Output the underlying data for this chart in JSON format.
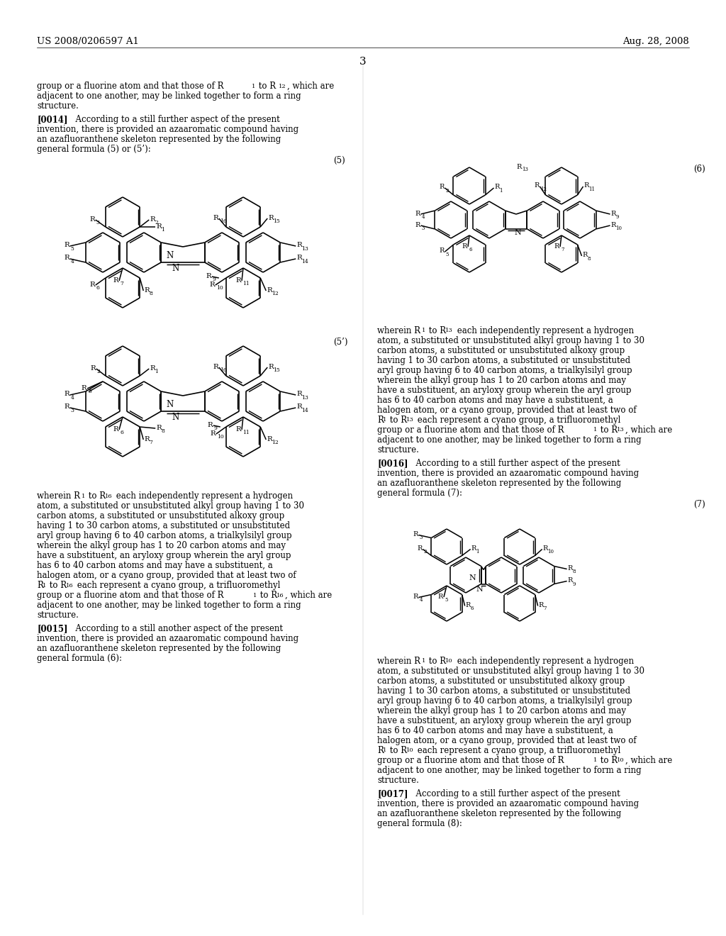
{
  "bg": "#ffffff",
  "header_left": "US 2008/0206597 A1",
  "header_right": "Aug. 28, 2008",
  "page_num": "3"
}
